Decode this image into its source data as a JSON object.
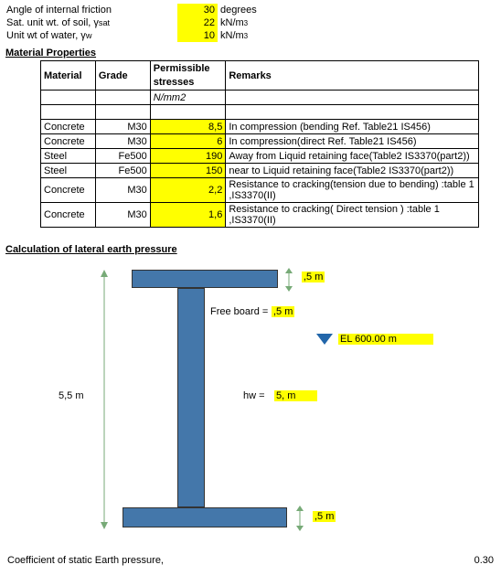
{
  "inputs": {
    "friction_label": "Angle of internal friction",
    "friction_val": "30",
    "friction_unit": "degrees",
    "sat_label": "Sat. unit wt. of soil, γ",
    "sat_sub": "sat",
    "sat_val": "22",
    "sat_unit_html": "kN/m³",
    "water_label": "Unit wt of water, γ",
    "water_sub": "w",
    "water_val": "10",
    "water_unit_html": "kN/m³"
  },
  "material_section": "Material Properties",
  "material_headers": {
    "c1": "Material",
    "c2": "Grade",
    "c3a": "Permissible",
    "c3b": "stresses",
    "c3unit": "N/mm2",
    "c4": "Remarks"
  },
  "material_rows": [
    {
      "m": "Concrete",
      "g": "M30",
      "v": "8,5",
      "r": "In compression (bending Ref. Table21 IS456)",
      "yv": true
    },
    {
      "m": "Concrete",
      "g": "M30",
      "v": "6",
      "r": "In compression(direct Ref. Table21 IS456)",
      "yv": true
    },
    {
      "m": "Steel",
      "g": "Fe500",
      "v": "190",
      "r": "Away from Liquid retaining face(Table2 IS3370(part2))",
      "yv": true
    },
    {
      "m": "Steel",
      "g": "Fe500",
      "v": "150",
      "r": "near to Liquid retaining face(Table2 IS3370(part2))",
      "yv": true
    },
    {
      "m": "Concrete",
      "g": "M30",
      "v": "2,2",
      "r": "Resistance to cracking(tension due to bending) :table 1 ,IS3370(II)",
      "yv": true
    },
    {
      "m": "Concrete",
      "g": "M30",
      "v": "1,6",
      "r": "Resistance to cracking(  Direct tension ) :table 1 ,IS3370(II)",
      "yv": true
    }
  ],
  "calc_section": "Calculation of lateral earth pressure",
  "diagram": {
    "top_thk": ",5 m",
    "freeboard_label": "Free board =",
    "freeboard_val": ",5 m",
    "el_label": "EL 600.00 m",
    "hw_label": "hw =",
    "hw_val": "5, m",
    "total_h": "5,5 m",
    "bot_thk": ",5 m",
    "colors": {
      "steel": "#4477aa",
      "hl": "#ffff00"
    }
  },
  "bottom": {
    "label": "Coefficient of static Earth pressure,",
    "val": "0.30"
  }
}
